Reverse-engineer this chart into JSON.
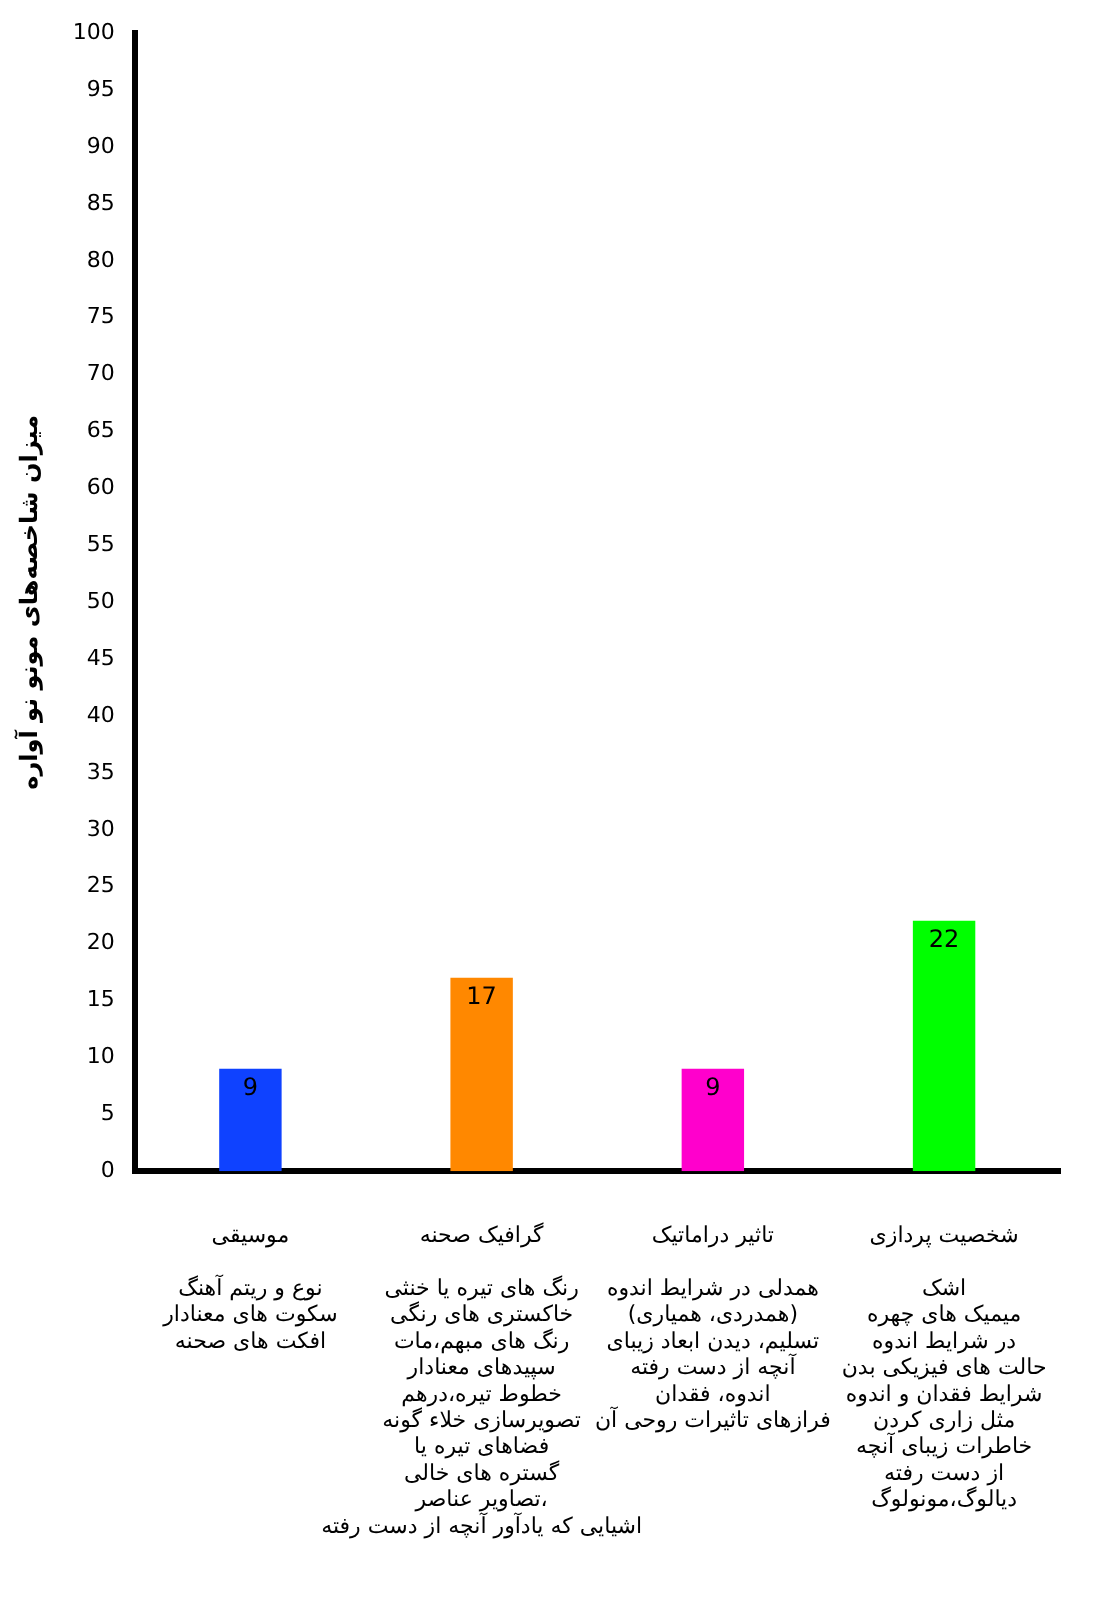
{
  "chart_data": {
    "type": "bar",
    "ylabel": "میزان شاخصه‌های مونو نو آواره",
    "categories": [
      "موسیقی\n\nنوع و ریتم آهنگ\nسکوت های معنادار\nافکت های صحنه",
      "گرافیک صحنه\n\nرنگ های تیره یا خنثی\nخاکستری های رنگی\nرنگ های مبهم،مات\nسپیدهای معنادار\nخطوط تیره،درهم\nتصویرسازی خلاء گونه\nفضاهای تیره یا\nگستره های خالی\nتصاویر عناصر،\nاشیایی که یادآور آنچه از دست رفته",
      "تاثیر دراماتیک\n\nهمدلی در شرایط اندوه\n(همدردی، همیاری)\nتسلیم، دیدن ابعاد زیبای\nآنچه از دست رفته\nاندوه، فقدان\nفرازهای تاثیرات روحی آن",
      "شخصیت پردازی\n\nاشک\nمیمیک های چهره\nدر شرایط اندوه\nحالت های فیزیکی بدن\nشرایط فقدان و اندوه\nمثل زاری کردن\nخاطرات زیبای آنچه\nاز دست رفته\nدیالوگ،مونولوگ"
    ],
    "values": [
      9,
      17,
      9,
      22
    ],
    "colors": [
      "#0f42ff",
      "#ff8800",
      "#ff00cc",
      "#00ff00"
    ],
    "ylim": [
      0,
      100
    ],
    "yticks": [
      0,
      5,
      10,
      15,
      20,
      25,
      30,
      35,
      40,
      45,
      50,
      55,
      60,
      65,
      70,
      75,
      80,
      85,
      90,
      95,
      100
    ],
    "data_labels": true,
    "grid": false,
    "legend": false
  }
}
